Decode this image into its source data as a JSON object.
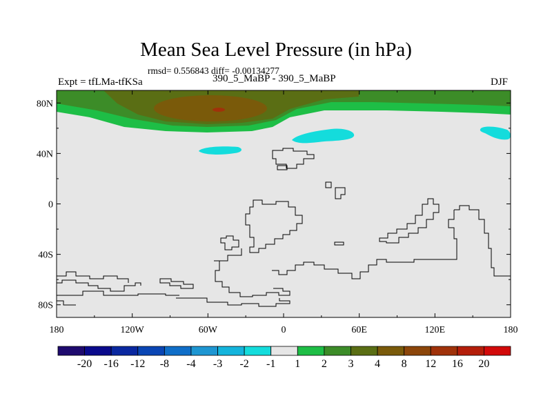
{
  "title": "Mean Sea Level Pressure (in hPa)",
  "stats": "rmsd= 0.556843 diff= -0.00134277",
  "left_label": "Expt = tfLMa-tfKSa",
  "center_label": "390_5_MaBP - 390_5_MaBP",
  "right_label": "DJF",
  "lat_ticks": [
    {
      "label": "80N",
      "lat": 80
    },
    {
      "label": "40N",
      "lat": 40
    },
    {
      "label": "0",
      "lat": 0
    },
    {
      "label": "40S",
      "lat": -40
    },
    {
      "label": "80S",
      "lat": -80
    }
  ],
  "lon_ticks": [
    {
      "label": "180",
      "lon": -180
    },
    {
      "label": "120W",
      "lon": -120
    },
    {
      "label": "60W",
      "lon": -60
    },
    {
      "label": "0",
      "lon": 0
    },
    {
      "label": "60E",
      "lon": 60
    },
    {
      "label": "120E",
      "lon": 120
    },
    {
      "label": "180",
      "lon": 180
    }
  ],
  "colorbar": {
    "colors": [
      "#1e0a6e",
      "#0a0a8c",
      "#0a28a0",
      "#0a46b4",
      "#0f6ec8",
      "#1e96d2",
      "#14b4dc",
      "#14dcdc",
      "#e6e6e6",
      "#1ebe46",
      "#3c8c28",
      "#5a6e14",
      "#7a5a0a",
      "#8c460a",
      "#a0320a",
      "#b41e0a",
      "#d20a0a"
    ],
    "labels": [
      "-20",
      "-16",
      "-12",
      "-8",
      "-4",
      "-3",
      "-2",
      "-1",
      "1",
      "2",
      "3",
      "4",
      "8",
      "12",
      "16",
      "20"
    ]
  },
  "colors": {
    "background": "#e6e6e6",
    "band_green": "#1ebe46",
    "band_dark_green": "#3c8c28",
    "band_olive": "#5a6e14",
    "band_brown": "#7a5a0a",
    "band_red": "#a0320a",
    "cyan": "#14dcdc"
  }
}
